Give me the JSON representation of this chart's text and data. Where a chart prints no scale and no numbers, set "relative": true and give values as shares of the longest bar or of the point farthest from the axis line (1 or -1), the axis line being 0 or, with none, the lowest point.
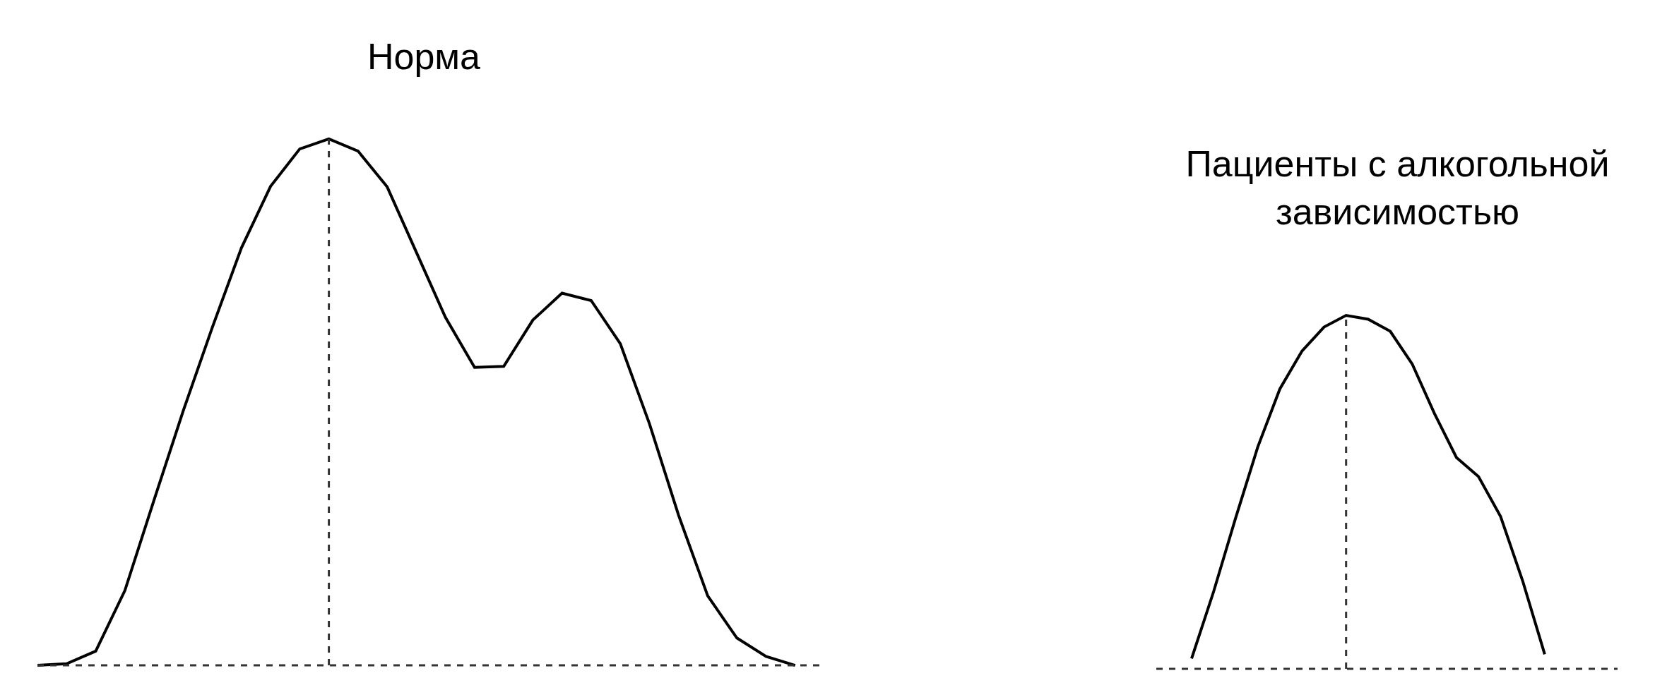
{
  "chart_data": [
    {
      "type": "line",
      "title": "Норма",
      "relative": true,
      "categories": [
        null,
        null,
        null,
        null,
        null,
        null,
        null,
        null,
        null,
        null,
        null,
        null,
        null,
        null,
        null,
        null,
        null,
        null,
        null,
        null,
        null,
        null,
        null,
        null,
        null,
        null,
        null
      ],
      "series": [
        {
          "color": "#000000",
          "values": [
            0,
            0.003,
            0.027,
            0.142,
            0.314,
            0.483,
            0.642,
            0.793,
            0.91,
            0.981,
            1,
            0.977,
            0.909,
            0.785,
            0.661,
            0.566,
            0.568,
            0.656,
            0.707,
            0.693,
            0.611,
            0.459,
            0.285,
            0.132,
            0.052,
            0.017,
            0
          ]
        }
      ]
    },
    {
      "type": "line",
      "title": "Пациенты с алкогольной\nзависимостью",
      "relative": true,
      "categories": [
        null,
        null,
        null,
        null,
        null,
        null,
        null,
        null,
        null,
        null,
        null,
        null,
        null,
        null,
        null,
        null,
        null
      ],
      "series": [
        {
          "color": "#000000",
          "values": [
            0.029,
            0.219,
            0.428,
            0.628,
            0.792,
            0.899,
            0.967,
            1,
            0.989,
            0.955,
            0.862,
            0.723,
            0.598,
            0.544,
            0.431,
            0.249,
            0.041
          ]
        }
      ]
    }
  ]
}
